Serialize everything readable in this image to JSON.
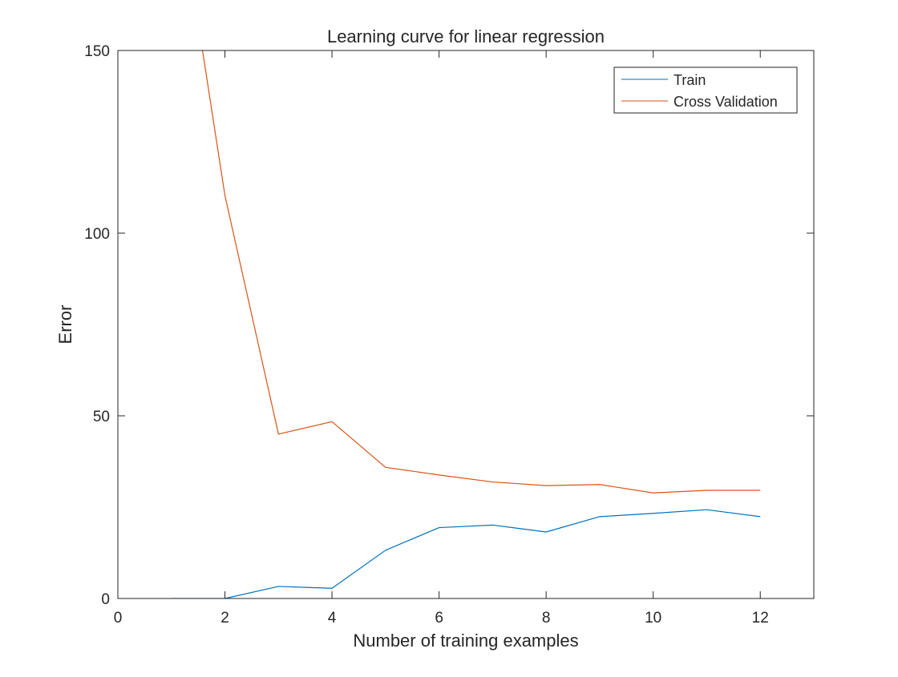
{
  "chart_data": {
    "type": "line",
    "title": "Learning curve for linear regression",
    "xlabel": "Number of training examples",
    "ylabel": "Error",
    "xlim": [
      0,
      13
    ],
    "ylim": [
      0,
      150
    ],
    "xticks": [
      0,
      2,
      4,
      6,
      8,
      10,
      12
    ],
    "yticks": [
      0,
      50,
      100,
      150
    ],
    "grid": false,
    "legend_position": "top-right",
    "x": [
      1,
      2,
      3,
      4,
      5,
      6,
      7,
      8,
      9,
      10,
      11,
      12
    ],
    "series": [
      {
        "name": "Train",
        "color": "#0072BD",
        "values": [
          0.0,
          0.0,
          3.3,
          2.8,
          13.2,
          19.4,
          20.1,
          18.2,
          22.4,
          23.3,
          24.3,
          22.4
        ]
      },
      {
        "name": "Cross Validation",
        "color": "#D95319",
        "values": [
          205.1,
          110.3,
          45.0,
          48.4,
          35.9,
          33.8,
          31.9,
          30.9,
          31.2,
          28.9,
          29.6,
          29.6
        ]
      }
    ]
  }
}
